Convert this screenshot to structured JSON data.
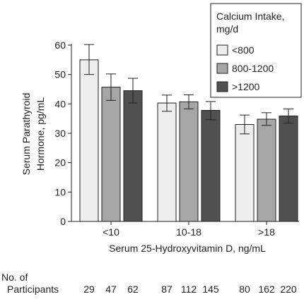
{
  "chart_data": {
    "type": "bar",
    "title": "",
    "xlabel": "Serum 25-Hydroxyvitamin D, ng/mL",
    "ylabel": [
      "Serum Parathyroid",
      "Hormone, pg/mL"
    ],
    "ylim": [
      0,
      60
    ],
    "yticks": [
      "0",
      "10",
      "20",
      "30",
      "40",
      "50",
      "60"
    ],
    "categories": [
      "<10",
      "10-18",
      ">18"
    ],
    "legend": {
      "title": [
        "Calcium Intake,",
        "mg/d"
      ],
      "placement": "top-right"
    },
    "series": [
      {
        "name": "<800",
        "color": "#ededed",
        "values": [
          55.0,
          40.3,
          33.0
        ],
        "error_low": [
          50.0,
          37.5,
          29.8
        ],
        "error_high": [
          60.2,
          43.0,
          36.2
        ]
      },
      {
        "name": "800-1200",
        "color": "#a6a6a6",
        "values": [
          45.7,
          40.7,
          34.8
        ],
        "error_low": [
          41.2,
          38.3,
          32.7
        ],
        "error_high": [
          50.2,
          43.1,
          37.0
        ]
      },
      {
        "name": ">1200",
        "color": "#505050",
        "values": [
          44.5,
          37.8,
          35.9
        ],
        "error_low": [
          40.3,
          34.6,
          33.5
        ],
        "error_high": [
          48.7,
          40.8,
          38.3
        ]
      }
    ],
    "participants": {
      "label": [
        "No. of",
        "Participants"
      ],
      "counts": [
        "29",
        "47",
        "62",
        "87",
        "112",
        "145",
        "80",
        "162",
        "220"
      ]
    },
    "grid": false
  }
}
